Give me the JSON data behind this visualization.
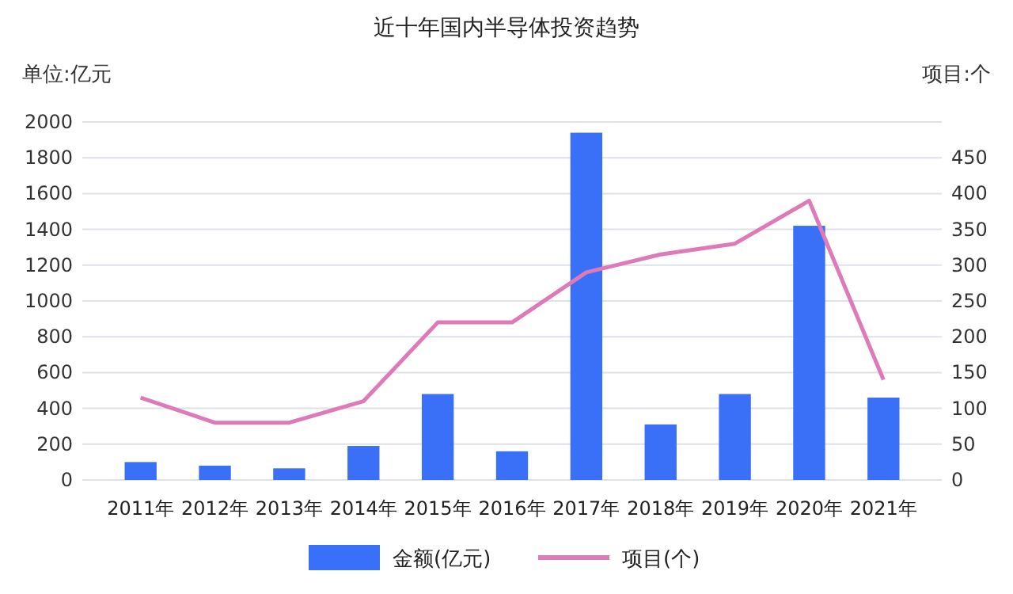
{
  "chart_data": {
    "type": "bar",
    "title": "近十年国内半导体投资趋势",
    "ylabel": "单位:亿元",
    "y2label": "项目:个",
    "categories": [
      "2011年",
      "2012年",
      "2013年",
      "2014年",
      "2015年",
      "2016年",
      "2017年",
      "2018年",
      "2019年",
      "2020年",
      "2021年"
    ],
    "series": [
      {
        "name": "金额(亿元)",
        "color": "#3a6ff7",
        "values": [
          100,
          80,
          65,
          190,
          480,
          160,
          1940,
          310,
          480,
          1420,
          460
        ]
      },
      {
        "name": "项目(个)",
        "type": "line",
        "axis": "y2",
        "color": "#de7ab8",
        "values": [
          115,
          80,
          80,
          110,
          220,
          220,
          290,
          315,
          330,
          390,
          140
        ]
      }
    ],
    "ylim": [
      0,
      2000
    ],
    "yticks": [
      0,
      200,
      400,
      600,
      800,
      1000,
      1200,
      1400,
      1600,
      1800,
      2000
    ],
    "y2lim": [
      0,
      500
    ],
    "y2ticks": [
      0,
      50,
      100,
      150,
      200,
      250,
      300,
      350,
      400,
      450
    ],
    "grid": "y",
    "legend": "bottom",
    "marker": "none",
    "line_style": "solid"
  }
}
